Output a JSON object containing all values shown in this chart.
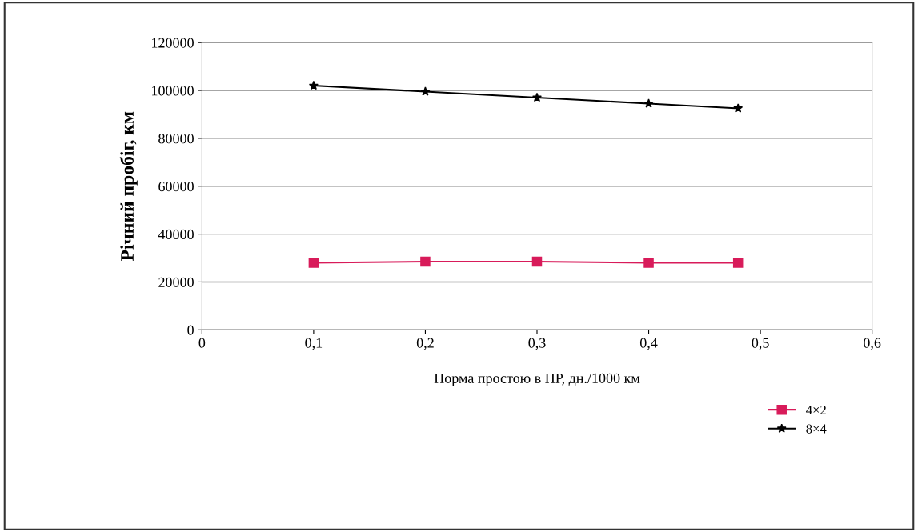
{
  "chart_data": {
    "type": "line",
    "xlabel": "Норма простою в ПР, дн./1000 км",
    "ylabel": "Річний пробіг, км",
    "xlim": [
      0,
      0.6
    ],
    "xticks": [
      {
        "value": 0,
        "label": "0"
      },
      {
        "value": 0.1,
        "label": "0,1"
      },
      {
        "value": 0.2,
        "label": "0,2"
      },
      {
        "value": 0.3,
        "label": "0,3"
      },
      {
        "value": 0.4,
        "label": "0,4"
      },
      {
        "value": 0.5,
        "label": "0,5"
      },
      {
        "value": 0.6,
        "label": "0,6"
      }
    ],
    "ylim": [
      0,
      120000
    ],
    "yticks": [
      0,
      20000,
      40000,
      60000,
      80000,
      100000,
      120000
    ],
    "grid": "y",
    "legend": "bottom right",
    "series": [
      {
        "name": "4×2",
        "color": "#d81b5a",
        "marker": "square",
        "x": [
          0.1,
          0.2,
          0.3,
          0.4,
          0.48
        ],
        "values": [
          28000,
          28500,
          28500,
          28000,
          28000
        ]
      },
      {
        "name": "8×4",
        "color": "#000000",
        "marker": "star",
        "x": [
          0.1,
          0.2,
          0.3,
          0.4,
          0.48
        ],
        "values": [
          102000,
          99500,
          97000,
          94500,
          92500
        ]
      }
    ]
  }
}
